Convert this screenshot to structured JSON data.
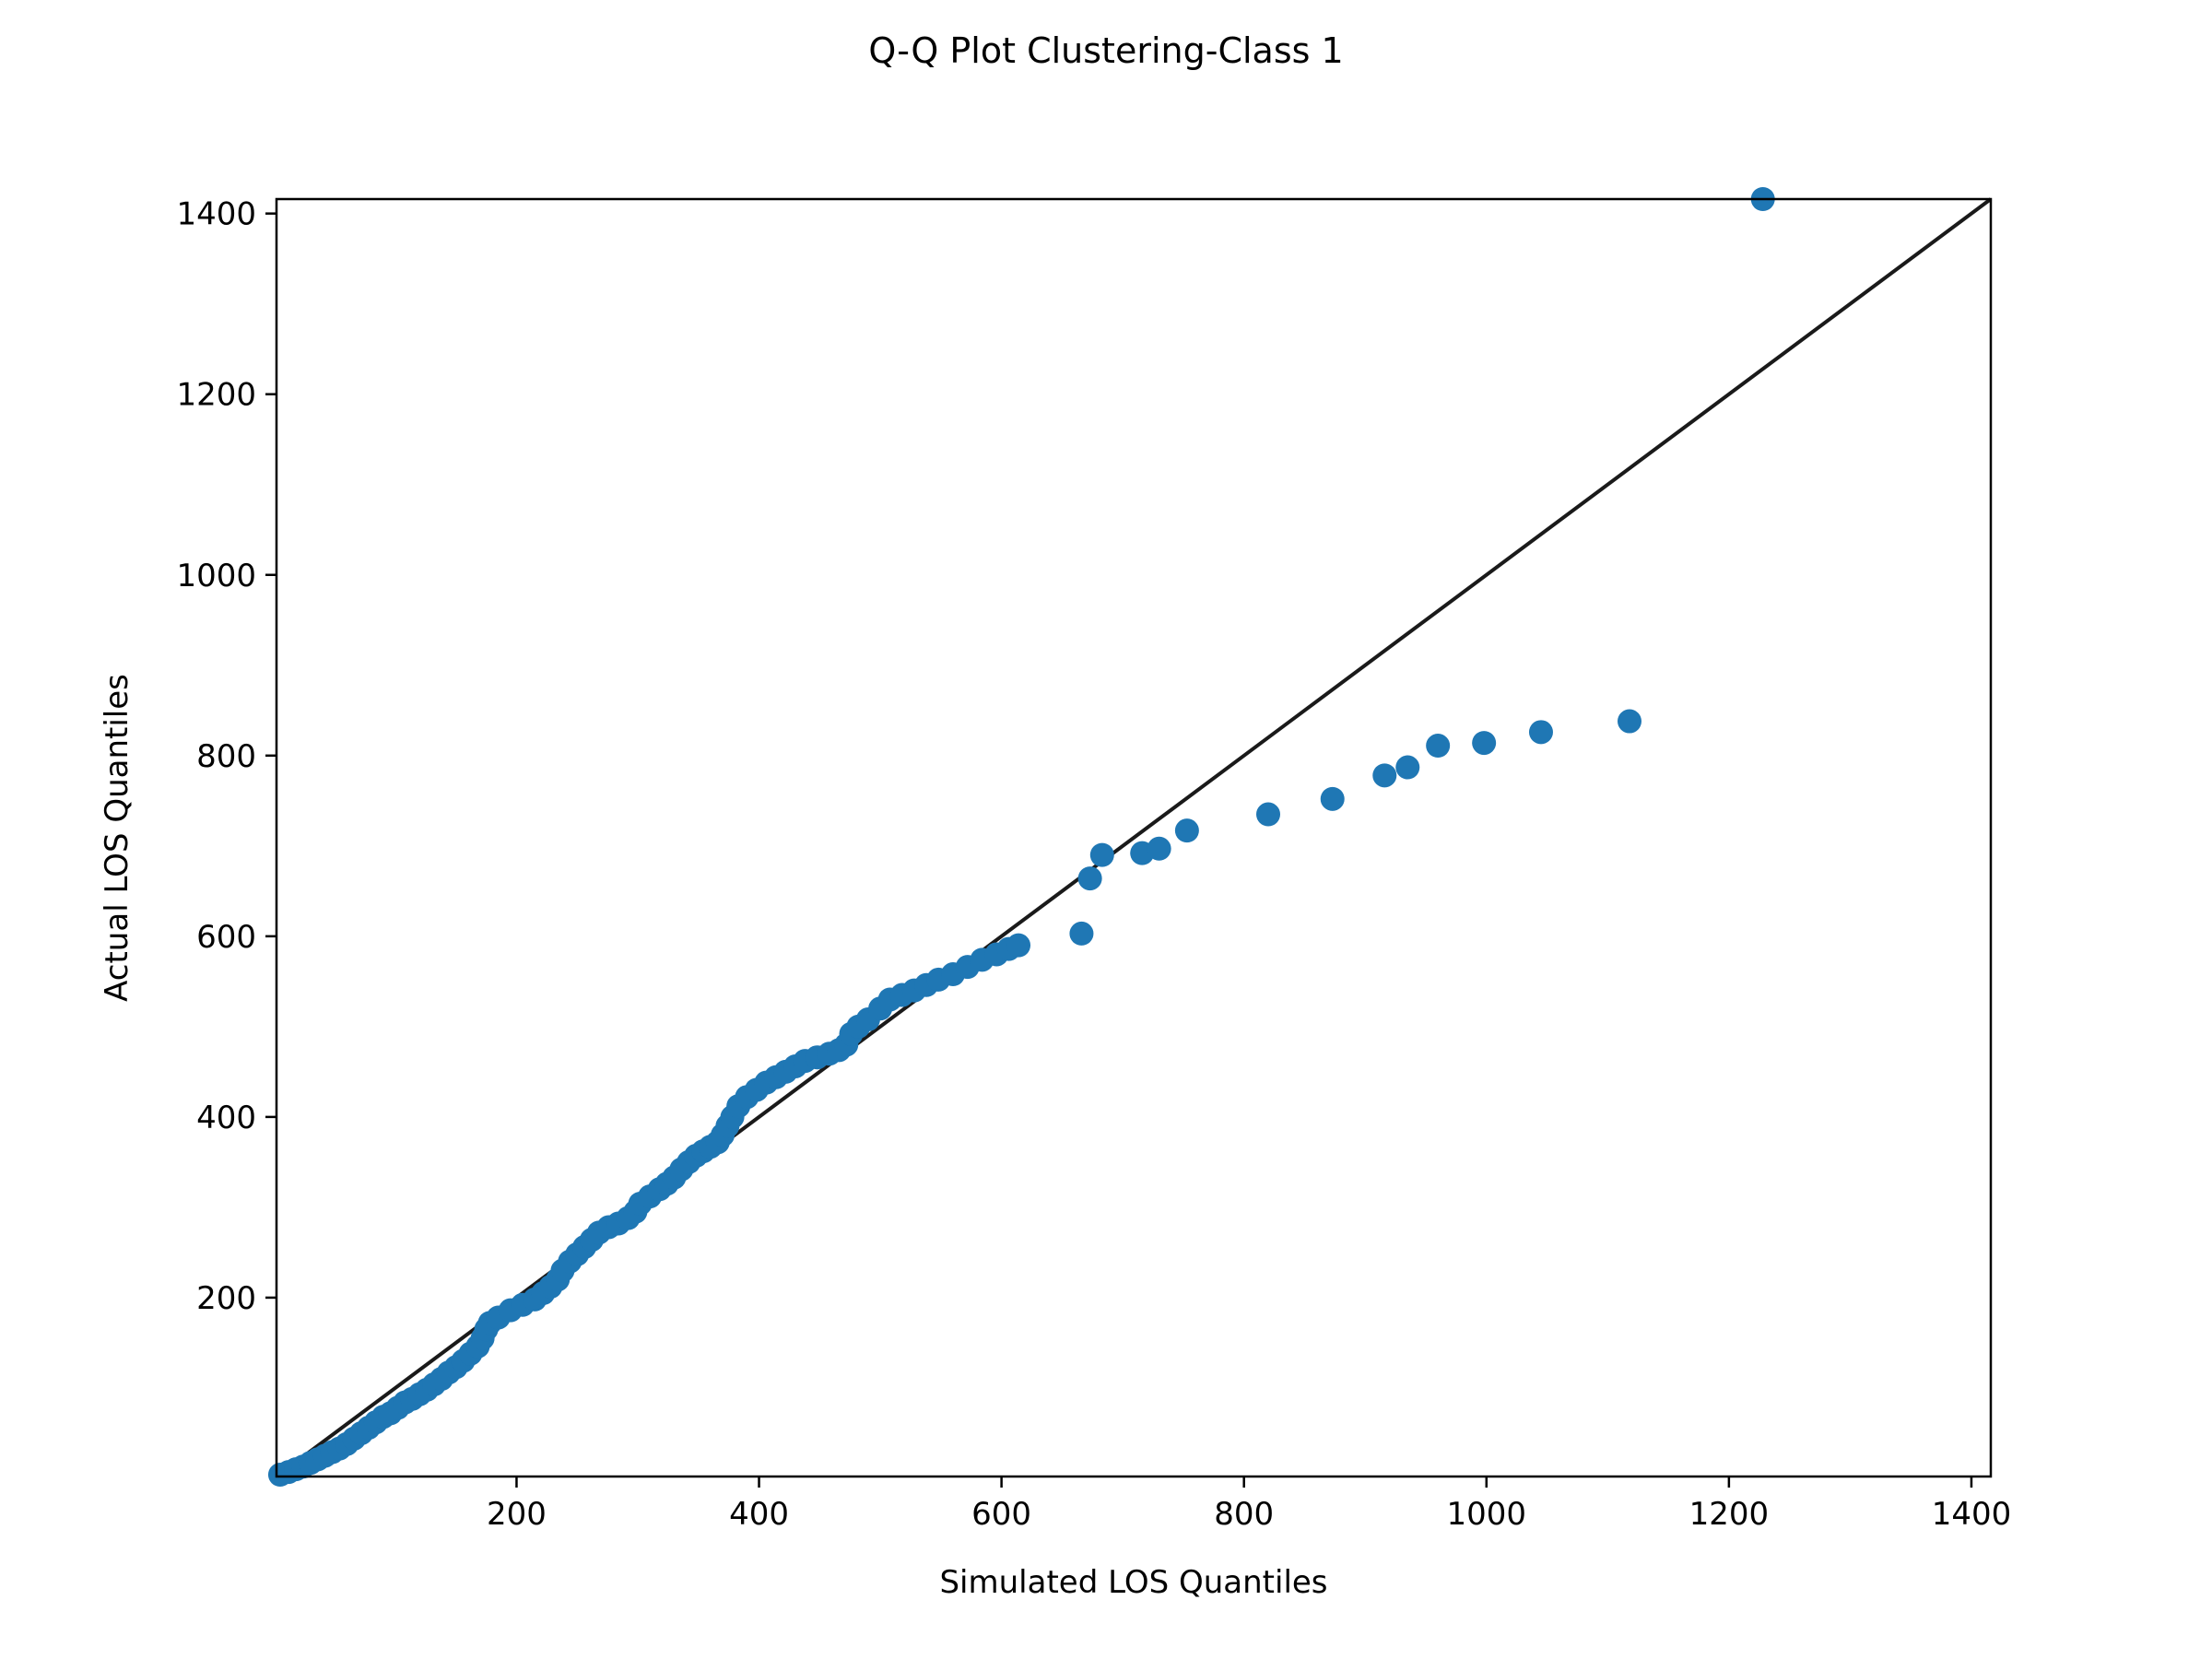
{
  "chart_data": {
    "type": "scatter",
    "title": "Q-Q Plot Clustering-Class 1",
    "xlabel": "Simulated LOS Quantiles",
    "ylabel": "Actual LOS Quantiles",
    "xlim": [
      2,
      1416
    ],
    "ylim": [
      2,
      1416
    ],
    "xticks": [
      200,
      400,
      600,
      800,
      1000,
      1200,
      1400
    ],
    "yticks": [
      200,
      400,
      600,
      800,
      1000,
      1200,
      1400
    ],
    "grid": false,
    "point_color": "#1f77b4",
    "line_color": "#1a1a1a",
    "reference_line": [
      [
        2,
        2
      ],
      [
        1416,
        1416
      ]
    ],
    "points": [
      [
        5,
        4
      ],
      [
        12,
        7
      ],
      [
        18,
        10
      ],
      [
        24,
        13
      ],
      [
        30,
        17
      ],
      [
        36,
        21
      ],
      [
        42,
        25
      ],
      [
        48,
        29
      ],
      [
        54,
        33
      ],
      [
        60,
        38
      ],
      [
        66,
        44
      ],
      [
        72,
        50
      ],
      [
        78,
        56
      ],
      [
        84,
        62
      ],
      [
        90,
        68
      ],
      [
        96,
        72
      ],
      [
        102,
        78
      ],
      [
        108,
        84
      ],
      [
        114,
        88
      ],
      [
        120,
        93
      ],
      [
        126,
        98
      ],
      [
        132,
        104
      ],
      [
        138,
        110
      ],
      [
        144,
        117
      ],
      [
        150,
        123
      ],
      [
        156,
        130
      ],
      [
        162,
        138
      ],
      [
        168,
        146
      ],
      [
        172,
        155
      ],
      [
        175,
        165
      ],
      [
        178,
        172
      ],
      [
        185,
        178
      ],
      [
        195,
        186
      ],
      [
        205,
        192
      ],
      [
        215,
        198
      ],
      [
        222,
        205
      ],
      [
        228,
        212
      ],
      [
        234,
        220
      ],
      [
        238,
        230
      ],
      [
        244,
        240
      ],
      [
        250,
        248
      ],
      [
        256,
        256
      ],
      [
        262,
        264
      ],
      [
        268,
        272
      ],
      [
        276,
        278
      ],
      [
        284,
        282
      ],
      [
        292,
        288
      ],
      [
        298,
        295
      ],
      [
        302,
        304
      ],
      [
        310,
        312
      ],
      [
        318,
        320
      ],
      [
        324,
        326
      ],
      [
        330,
        333
      ],
      [
        336,
        342
      ],
      [
        342,
        350
      ],
      [
        348,
        357
      ],
      [
        354,
        362
      ],
      [
        360,
        367
      ],
      [
        366,
        372
      ],
      [
        370,
        380
      ],
      [
        374,
        390
      ],
      [
        378,
        400
      ],
      [
        383,
        412
      ],
      [
        390,
        422
      ],
      [
        398,
        430
      ],
      [
        406,
        438
      ],
      [
        414,
        444
      ],
      [
        422,
        450
      ],
      [
        430,
        456
      ],
      [
        438,
        462
      ],
      [
        448,
        466
      ],
      [
        458,
        470
      ],
      [
        466,
        474
      ],
      [
        472,
        480
      ],
      [
        476,
        492
      ],
      [
        482,
        500
      ],
      [
        490,
        508
      ],
      [
        500,
        520
      ],
      [
        508,
        530
      ],
      [
        518,
        535
      ],
      [
        528,
        540
      ],
      [
        538,
        546
      ],
      [
        548,
        552
      ],
      [
        560,
        558
      ],
      [
        572,
        566
      ],
      [
        584,
        574
      ],
      [
        596,
        580
      ],
      [
        606,
        586
      ],
      [
        614,
        590
      ],
      [
        666,
        603
      ],
      [
        673,
        664
      ],
      [
        683,
        690
      ],
      [
        716,
        692
      ],
      [
        730,
        697
      ],
      [
        753,
        717
      ],
      [
        820,
        735
      ],
      [
        873,
        752
      ],
      [
        916,
        778
      ],
      [
        935,
        787
      ],
      [
        960,
        811
      ],
      [
        998,
        814
      ],
      [
        1045,
        826
      ],
      [
        1118,
        838
      ],
      [
        1228,
        1416
      ]
    ]
  }
}
